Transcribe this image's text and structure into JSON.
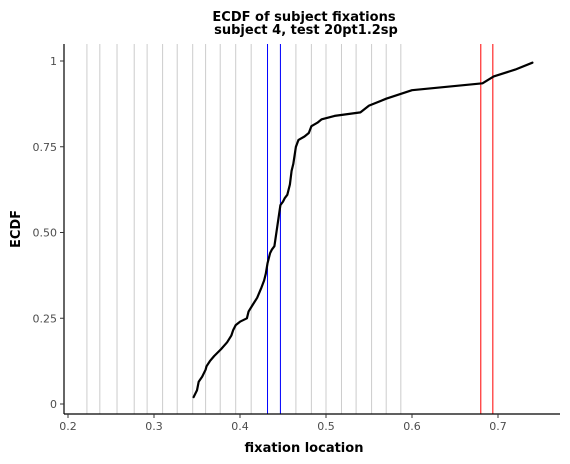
{
  "chart_data": {
    "type": "line",
    "title_lines": [
      "ECDF of subject fixations",
      "subject 4, test 20pt1.2sp"
    ],
    "xlabel": "fixation location",
    "ylabel": "ECDF",
    "xlim": [
      0.2,
      0.75
    ],
    "ylim": [
      0,
      1
    ],
    "x_ticks": [
      0.2,
      0.3,
      0.4,
      0.5,
      0.6,
      0.7
    ],
    "x_tick_labels": [
      "0.2",
      "0.3",
      "0.4",
      "0.5",
      "0.6",
      "0.7"
    ],
    "y_ticks": [
      0,
      0.25,
      0.5,
      0.75,
      1
    ],
    "y_tick_labels": [
      "0",
      "0.25",
      "0.50",
      "0.75",
      "1"
    ],
    "grid": "vertical lines only (light gray, irregular positions)",
    "gray_vlines": [
      0.222,
      0.237,
      0.257,
      0.277,
      0.292,
      0.31,
      0.327,
      0.345,
      0.36,
      0.377,
      0.395,
      0.413,
      0.447,
      0.465,
      0.483,
      0.5,
      0.518,
      0.535,
      0.553,
      0.57,
      0.587
    ],
    "blue_vlines": [
      0.432,
      0.447
    ],
    "red_vlines": [
      0.68,
      0.694
    ],
    "colors": {
      "ecdf": "#000000",
      "grid": "#cccccc",
      "blue": "#0000ff",
      "red": "#ff0000",
      "axis": "#000000"
    },
    "series": [
      {
        "x": [
          0.346,
          0.35,
          0.352,
          0.356,
          0.36,
          0.361,
          0.365,
          0.37,
          0.378,
          0.385,
          0.39,
          0.392,
          0.395,
          0.4,
          0.408,
          0.41,
          0.415,
          0.42,
          0.425,
          0.428,
          0.43,
          0.432,
          0.435,
          0.437,
          0.44,
          0.447,
          0.45,
          0.452,
          0.455,
          0.458,
          0.46,
          0.462,
          0.465,
          0.468,
          0.475,
          0.48,
          0.483,
          0.49,
          0.495,
          0.51,
          0.54,
          0.55,
          0.57,
          0.6,
          0.682,
          0.695,
          0.72,
          0.74
        ],
        "y": [
          0.02,
          0.04,
          0.065,
          0.08,
          0.1,
          0.11,
          0.125,
          0.14,
          0.16,
          0.18,
          0.2,
          0.215,
          0.23,
          0.24,
          0.25,
          0.27,
          0.29,
          0.31,
          0.34,
          0.36,
          0.38,
          0.41,
          0.44,
          0.45,
          0.46,
          0.58,
          0.59,
          0.6,
          0.61,
          0.64,
          0.68,
          0.7,
          0.75,
          0.77,
          0.78,
          0.79,
          0.81,
          0.82,
          0.83,
          0.84,
          0.85,
          0.87,
          0.89,
          0.915,
          0.935,
          0.955,
          0.975,
          0.995
        ]
      }
    ]
  }
}
